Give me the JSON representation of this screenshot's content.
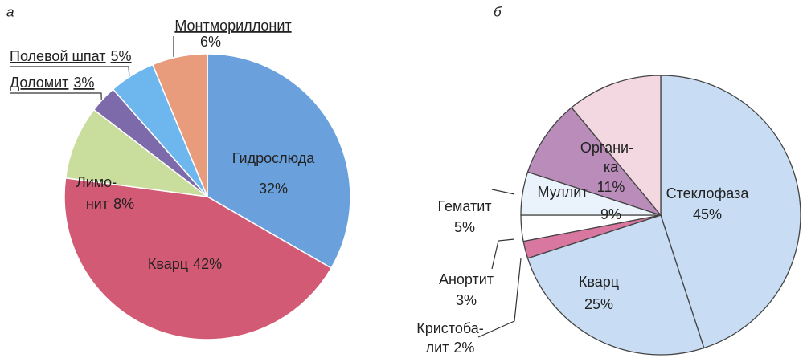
{
  "chart_data": [
    {
      "type": "pie",
      "title": "а",
      "categories": [
        [
          "Гидрослюда"
        ],
        [
          "Кварц"
        ],
        [
          "Лимо-",
          "нит"
        ],
        [
          "Доломит"
        ],
        [
          "Полевой шпат"
        ],
        [
          "Монтмориллонит"
        ]
      ],
      "values": [
        32,
        42,
        8,
        3,
        5,
        6
      ],
      "value_labels": [
        "32%",
        "42%",
        "8%",
        "3%",
        "5%",
        "6%"
      ],
      "colors": [
        "#6aa1dc",
        "#d35a74",
        "#c9dd9c",
        "#7c6aaa",
        "#6db6ee",
        "#e89c7c"
      ]
    },
    {
      "type": "pie",
      "title": "б",
      "categories": [
        [
          "Стеклофаза"
        ],
        [
          "Кварц"
        ],
        [
          "Кристоба-",
          "лит"
        ],
        [
          "Анортит"
        ],
        [
          "Гематит"
        ],
        [
          "Муллит"
        ],
        [
          "Органи-",
          "ка"
        ]
      ],
      "values": [
        45,
        25,
        2,
        3,
        5,
        9,
        11
      ],
      "value_labels": [
        "45%",
        "25%",
        "2%",
        "3%",
        "5%",
        "9%",
        "11%"
      ],
      "colors": [
        "#c8ddf3",
        "#c8ddf3",
        "#d877a0",
        "#ffffff",
        "#eaf2fb",
        "#b98cba",
        "#f3d8e2"
      ]
    }
  ]
}
